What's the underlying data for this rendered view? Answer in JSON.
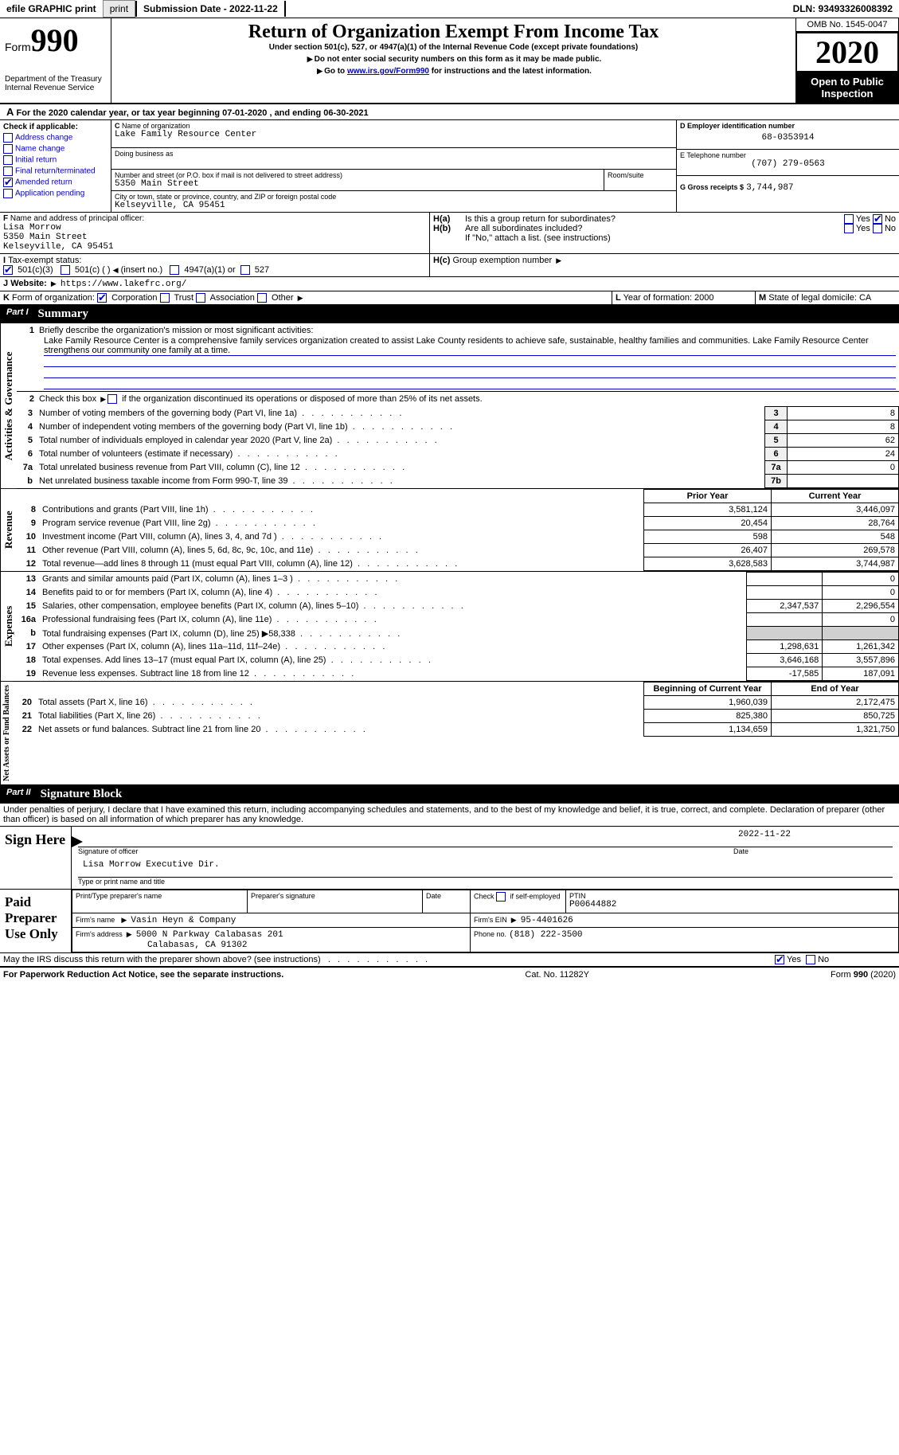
{
  "topbar": {
    "efile": "efile GRAPHIC print",
    "submission": "Submission Date - 2022-11-22",
    "dln": "DLN: 93493326008392"
  },
  "header": {
    "form_label": "Form",
    "form_num": "990",
    "dept1": "Department of the Treasury",
    "dept2": "Internal Revenue Service",
    "title": "Return of Organization Exempt From Income Tax",
    "subtitle": "Under section 501(c), 527, or 4947(a)(1) of the Internal Revenue Code (except private foundations)",
    "note1": "Do not enter social security numbers on this form as it may be made public.",
    "note2_pre": "Go to ",
    "note2_link": "www.irs.gov/Form990",
    "note2_post": " for instructions and the latest information.",
    "omb": "OMB No. 1545-0047",
    "year": "2020",
    "open": "Open to Public Inspection"
  },
  "line_a": "For the 2020 calendar year, or tax year beginning 07-01-2020    , and ending 06-30-2021",
  "section_b": {
    "title": "Check if applicable:",
    "items": [
      "Address change",
      "Name change",
      "Initial return",
      "Final return/terminated",
      "Amended return",
      "Application pending"
    ],
    "checked_idx": 4
  },
  "section_c": {
    "label": "Name of organization",
    "org": "Lake Family Resource Center",
    "dba_label": "Doing business as",
    "dba": "",
    "addr_label": "Number and street (or P.O. box if mail is not delivered to street address)",
    "room_label": "Room/suite",
    "addr": "5350 Main Street",
    "city_label": "City or town, state or province, country, and ZIP or foreign postal code",
    "city": "Kelseyville, CA  95451"
  },
  "section_de": {
    "d_label": "D Employer identification number",
    "ein": "68-0353914",
    "e_label": "E Telephone number",
    "phone": "(707) 279-0563",
    "g_label": "G Gross receipts $",
    "gross": "3,744,987"
  },
  "section_f": {
    "label": "Name and address of principal officer:",
    "name": "Lisa Morrow",
    "addr1": "5350 Main Street",
    "addr2": "Kelseyville, CA  95451"
  },
  "section_h": {
    "ha": "Is this a group return for subordinates?",
    "hb": "Are all subordinates included?",
    "hb_note": "If \"No,\" attach a list. (see instructions)",
    "hc": "Group exemption number",
    "yes": "Yes",
    "no": "No"
  },
  "section_i": {
    "label": "Tax-exempt status:",
    "opts": [
      "501(c)(3)",
      "501(c) (   )",
      "(insert no.)",
      "4947(a)(1) or",
      "527"
    ]
  },
  "section_j": {
    "label": "Website:",
    "url": "https://www.lakefrc.org/"
  },
  "section_k": {
    "label": "Form of organization:",
    "opts": [
      "Corporation",
      "Trust",
      "Association",
      "Other"
    ]
  },
  "section_lm": {
    "l": "Year of formation: 2000",
    "m": "State of legal domicile: CA"
  },
  "part1": {
    "num": "Part I",
    "title": "Summary",
    "q1_label": "Briefly describe the organization's mission or most significant activities:",
    "q1_text": "Lake Family Resource Center is a comprehensive family services organization created to assist Lake County residents to achieve safe, sustainable, healthy families and communities. Lake Family Resource Center strengthens our community one family at a time.",
    "q2": "Check this box          if the organization discontinued its operations or disposed of more than 25% of its net assets.",
    "rows_gov": [
      {
        "n": "3",
        "t": "Number of voting members of the governing body (Part VI, line 1a)",
        "c": "3",
        "v": "8"
      },
      {
        "n": "4",
        "t": "Number of independent voting members of the governing body (Part VI, line 1b)",
        "c": "4",
        "v": "8"
      },
      {
        "n": "5",
        "t": "Total number of individuals employed in calendar year 2020 (Part V, line 2a)",
        "c": "5",
        "v": "62"
      },
      {
        "n": "6",
        "t": "Total number of volunteers (estimate if necessary)",
        "c": "6",
        "v": "24"
      },
      {
        "n": "7a",
        "t": "Total unrelated business revenue from Part VIII, column (C), line 12",
        "c": "7a",
        "v": "0"
      },
      {
        "n": "b",
        "t": "Net unrelated business taxable income from Form 990-T, line 39",
        "c": "7b",
        "v": ""
      }
    ],
    "col_headers": {
      "prior": "Prior Year",
      "current": "Current Year",
      "boy": "Beginning of Current Year",
      "eoy": "End of Year"
    },
    "revenue": [
      {
        "n": "8",
        "t": "Contributions and grants (Part VIII, line 1h)",
        "p": "3,581,124",
        "c": "3,446,097"
      },
      {
        "n": "9",
        "t": "Program service revenue (Part VIII, line 2g)",
        "p": "20,454",
        "c": "28,764"
      },
      {
        "n": "10",
        "t": "Investment income (Part VIII, column (A), lines 3, 4, and 7d )",
        "p": "598",
        "c": "548"
      },
      {
        "n": "11",
        "t": "Other revenue (Part VIII, column (A), lines 5, 6d, 8c, 9c, 10c, and 11e)",
        "p": "26,407",
        "c": "269,578"
      },
      {
        "n": "12",
        "t": "Total revenue—add lines 8 through 11 (must equal Part VIII, column (A), line 12)",
        "p": "3,628,583",
        "c": "3,744,987"
      }
    ],
    "expenses": [
      {
        "n": "13",
        "t": "Grants and similar amounts paid (Part IX, column (A), lines 1–3 )",
        "p": "",
        "c": "0"
      },
      {
        "n": "14",
        "t": "Benefits paid to or for members (Part IX, column (A), line 4)",
        "p": "",
        "c": "0"
      },
      {
        "n": "15",
        "t": "Salaries, other compensation, employee benefits (Part IX, column (A), lines 5–10)",
        "p": "2,347,537",
        "c": "2,296,554"
      },
      {
        "n": "16a",
        "t": "Professional fundraising fees (Part IX, column (A), line 11e)",
        "p": "",
        "c": "0"
      },
      {
        "n": "b",
        "t": "Total fundraising expenses (Part IX, column (D), line 25) ▶58,338",
        "p": "SHADE",
        "c": "SHADE"
      },
      {
        "n": "17",
        "t": "Other expenses (Part IX, column (A), lines 11a–11d, 11f–24e)",
        "p": "1,298,631",
        "c": "1,261,342"
      },
      {
        "n": "18",
        "t": "Total expenses. Add lines 13–17 (must equal Part IX, column (A), line 25)",
        "p": "3,646,168",
        "c": "3,557,896"
      },
      {
        "n": "19",
        "t": "Revenue less expenses. Subtract line 18 from line 12",
        "p": "-17,585",
        "c": "187,091"
      }
    ],
    "netassets": [
      {
        "n": "20",
        "t": "Total assets (Part X, line 16)",
        "p": "1,960,039",
        "c": "2,172,475"
      },
      {
        "n": "21",
        "t": "Total liabilities (Part X, line 26)",
        "p": "825,380",
        "c": "850,725"
      },
      {
        "n": "22",
        "t": "Net assets or fund balances. Subtract line 21 from line 20",
        "p": "1,134,659",
        "c": "1,321,750"
      }
    ],
    "side_labels": {
      "gov": "Activities & Governance",
      "rev": "Revenue",
      "exp": "Expenses",
      "net": "Net Assets or Fund Balances"
    }
  },
  "part2": {
    "num": "Part II",
    "title": "Signature Block",
    "penalties": "Under penalties of perjury, I declare that I have examined this return, including accompanying schedules and statements, and to the best of my knowledge and belief, it is true, correct, and complete. Declaration of preparer (other than officer) is based on all information of which preparer has any knowledge.",
    "sign_here": "Sign Here",
    "sig_officer": "Signature of officer",
    "sig_date": "2022-11-22",
    "date_label": "Date",
    "officer_name": "Lisa Morrow  Executive Dir.",
    "type_name": "Type or print name and title",
    "paid": "Paid Preparer Use Only",
    "prep_name_label": "Print/Type preparer's name",
    "prep_sig_label": "Preparer's signature",
    "check_self": "Check          if self-employed",
    "ptin_label": "PTIN",
    "ptin": "P00644882",
    "firm_name_label": "Firm's name",
    "firm_name": "Vasin Heyn & Company",
    "firm_ein_label": "Firm's EIN",
    "firm_ein": "95-4401626",
    "firm_addr_label": "Firm's address",
    "firm_addr1": "5000 N Parkway Calabasas 201",
    "firm_addr2": "Calabasas, CA  91302",
    "phone_label": "Phone no.",
    "phone": "(818) 222-3500",
    "may_irs": "May the IRS discuss this return with the preparer shown above? (see instructions)"
  },
  "footer": {
    "pra": "For Paperwork Reduction Act Notice, see the separate instructions.",
    "cat": "Cat. No. 11282Y",
    "form": "Form 990 (2020)"
  }
}
